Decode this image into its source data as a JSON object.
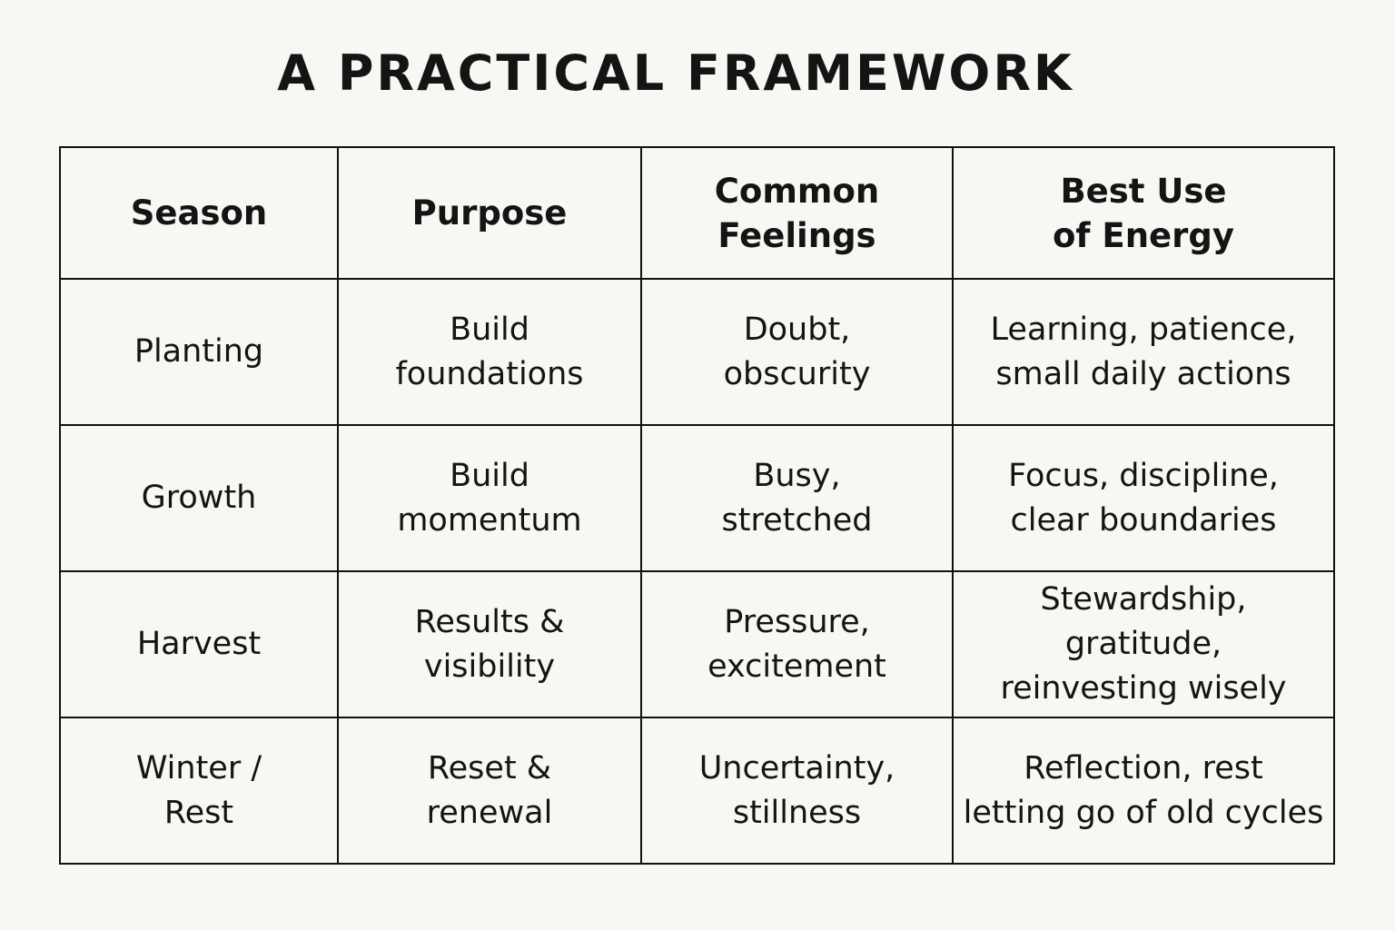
{
  "title": "A PRACTICAL FRAMEWORK",
  "headers": [
    [
      "Season"
    ],
    [
      "Purpose"
    ],
    [
      "Common",
      "Feelings"
    ],
    [
      "Best Use",
      "of Energy"
    ]
  ],
  "rows": [
    [
      [
        "Planting"
      ],
      [
        "Build",
        "foundations"
      ],
      [
        "Doubt,",
        "obscurity"
      ],
      [
        "Learning, patience,",
        "small daily actions"
      ]
    ],
    [
      [
        "Growth"
      ],
      [
        "Build",
        "momentum"
      ],
      [
        "Busy,",
        "stretched"
      ],
      [
        "Focus, discipline,",
        "clear boundaries"
      ]
    ],
    [
      [
        "Harvest"
      ],
      [
        "Results &",
        "visibility"
      ],
      [
        "Pressure,",
        "excitement"
      ],
      [
        "Stewardship, gratitude,",
        "reinvesting wisely"
      ]
    ],
    [
      [
        "Winter /",
        "Rest"
      ],
      [
        "Reset &",
        "renewal"
      ],
      [
        "Uncertainty,",
        "stillness"
      ],
      [
        "Reflection, rest",
        "letting go of old cycles"
      ]
    ]
  ]
}
